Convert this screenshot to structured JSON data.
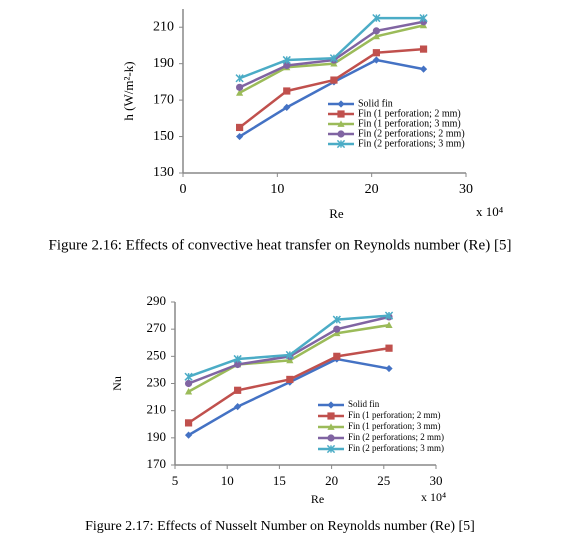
{
  "chart_data": [
    {
      "type": "line",
      "x_label": "Re",
      "x_note": "x 10⁴",
      "y_label": "h (W/m²-k)",
      "caption": "Figure 2.16: Effects of convective heat transfer on Reynolds number (Re) [5]",
      "xlim": [
        0,
        30
      ],
      "xticks": [
        0,
        10,
        20,
        30
      ],
      "ylim": [
        130,
        220
      ],
      "yticks": [
        130,
        150,
        170,
        190,
        210
      ],
      "x": [
        6,
        11,
        16,
        20.5,
        25.5
      ],
      "series": [
        {
          "name": "Solid fin",
          "color": "#4472c4",
          "marker": "diamond",
          "values": [
            150,
            166,
            180,
            192,
            187
          ]
        },
        {
          "name": "Fin (1 perforation; 2 mm)",
          "color": "#c0504d",
          "marker": "square",
          "values": [
            155,
            175,
            181,
            196,
            198
          ]
        },
        {
          "name": "Fin (1 perforation; 3 mm)",
          "color": "#9bbb59",
          "marker": "triangle",
          "values": [
            174,
            188,
            190,
            205,
            211
          ]
        },
        {
          "name": "Fin (2 perforations; 2 mm)",
          "color": "#8064a2",
          "marker": "circle",
          "values": [
            177,
            189,
            192,
            208,
            213
          ]
        },
        {
          "name": "Fin (2 perforations; 3 mm)",
          "color": "#4bacc6",
          "marker": "star",
          "values": [
            182,
            192,
            193,
            215,
            215
          ]
        }
      ]
    },
    {
      "type": "line",
      "x_label": "Re",
      "x_note": "x 10⁴",
      "y_label": "Nu",
      "caption": "Figure 2.17: Effects of Nusselt Number on Reynolds number (Re) [5]",
      "xlim": [
        5,
        30
      ],
      "xticks": [
        5,
        10,
        15,
        20,
        25,
        30
      ],
      "ylim": [
        170,
        290
      ],
      "yticks": [
        170,
        190,
        210,
        230,
        250,
        270,
        290
      ],
      "x": [
        6.3,
        11,
        16,
        20.5,
        25.5
      ],
      "series": [
        {
          "name": "Solid fin",
          "color": "#4472c4",
          "marker": "diamond",
          "values": [
            192,
            213,
            231,
            248,
            241
          ]
        },
        {
          "name": "Fin (1 perforation; 2 mm)",
          "color": "#c0504d",
          "marker": "square",
          "values": [
            201,
            225,
            233,
            250,
            256
          ]
        },
        {
          "name": "Fin (1 perforation; 3 mm)",
          "color": "#9bbb59",
          "marker": "triangle",
          "values": [
            224,
            244,
            247,
            267,
            273
          ]
        },
        {
          "name": "Fin (2 perforations; 2 mm)",
          "color": "#8064a2",
          "marker": "circle",
          "values": [
            230,
            244,
            250,
            270,
            279
          ]
        },
        {
          "name": "Fin (2 perforations; 3 mm)",
          "color": "#4bacc6",
          "marker": "star",
          "values": [
            235,
            248,
            251,
            277,
            280
          ]
        }
      ]
    }
  ]
}
